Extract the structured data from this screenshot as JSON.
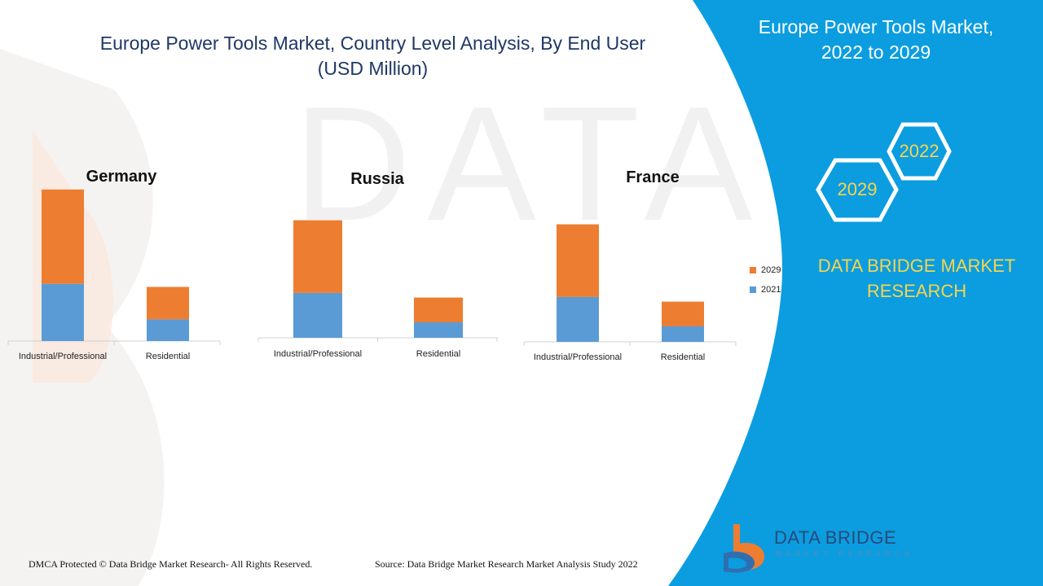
{
  "header": {
    "title_line1": "Europe Power Tools Market, Country Level Analysis, By End User",
    "title_line2": "(USD Million)"
  },
  "side_panel": {
    "title_line1": "Europe Power Tools Market,",
    "title_line2": "2022 to 2029",
    "hex_2022": "2022",
    "hex_2029": "2029",
    "brand_line1": "DATA BRIDGE MARKET",
    "brand_line2": "RESEARCH",
    "colors": {
      "panel": "#0b9de0",
      "accent": "#f6d44e",
      "hex_stroke": "#ffffff"
    }
  },
  "legend": {
    "items": [
      {
        "label": "2029",
        "color": "#ed7d31"
      },
      {
        "label": "2021",
        "color": "#5b9bd5"
      }
    ]
  },
  "footer": {
    "copyright": "DMCA Protected © Data Bridge Market Research- All Rights Reserved.",
    "source": "Source: Data Bridge Market Research Market Analysis Study 2022"
  },
  "logo": {
    "name": "DATA BRIDGE",
    "tagline": "MARKET RESEARCH",
    "icon": "data-bridge-logo-icon"
  },
  "chart_data": [
    {
      "type": "bar",
      "stacked": true,
      "title": "Germany",
      "categories": [
        "Industrial/Professional",
        "Residential"
      ],
      "series": [
        {
          "name": "2021",
          "values": [
            37,
            14
          ],
          "color": "#5b9bd5"
        },
        {
          "name": "2029",
          "values": [
            61,
            21
          ],
          "color": "#ed7d31"
        }
      ],
      "ylim": [
        0,
        100
      ]
    },
    {
      "type": "bar",
      "stacked": true,
      "title": "Russia",
      "categories": [
        "Industrial/Professional",
        "Residential"
      ],
      "series": [
        {
          "name": "2021",
          "values": [
            29,
            10
          ],
          "color": "#5b9bd5"
        },
        {
          "name": "2029",
          "values": [
            47,
            16
          ],
          "color": "#ed7d31"
        }
      ],
      "ylim": [
        0,
        100
      ]
    },
    {
      "type": "bar",
      "stacked": true,
      "title": "France",
      "categories": [
        "Industrial/Professional",
        "Residential"
      ],
      "series": [
        {
          "name": "2021",
          "values": [
            29,
            10
          ],
          "color": "#5b9bd5"
        },
        {
          "name": "2029",
          "values": [
            47,
            16
          ],
          "color": "#ed7d31"
        }
      ],
      "ylim": [
        0,
        100
      ]
    }
  ]
}
